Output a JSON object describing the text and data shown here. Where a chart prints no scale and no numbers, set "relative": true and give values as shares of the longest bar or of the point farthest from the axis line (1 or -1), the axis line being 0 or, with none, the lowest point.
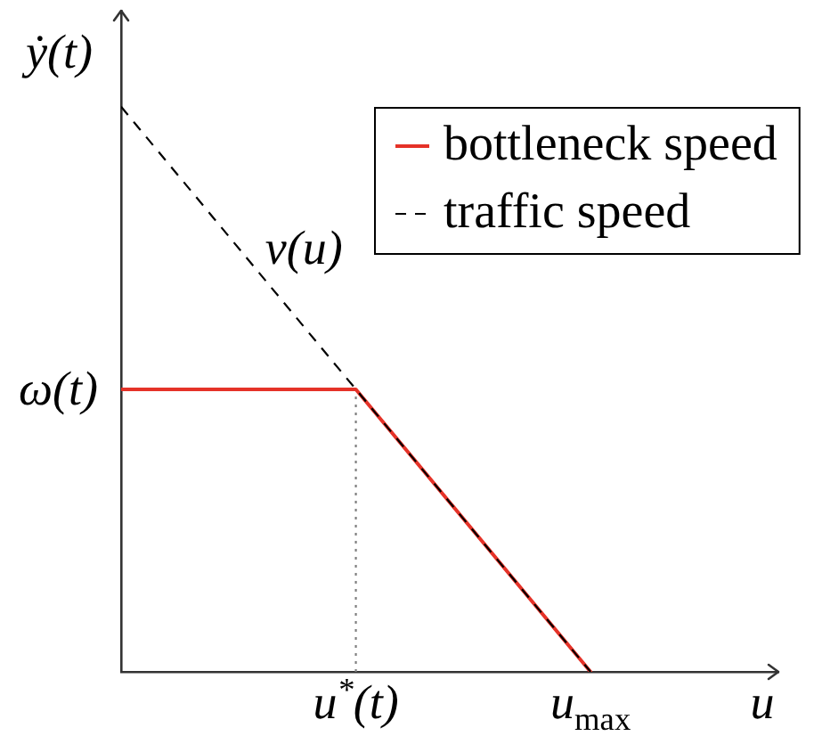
{
  "chart_data": {
    "type": "line",
    "xlabel": "u",
    "ylabel": "ẏ(t)",
    "relative": true,
    "categories": [
      null,
      "u$^{*}$(t)",
      "u$_{max}$"
    ],
    "series": [
      {
        "color": "#808080",
        "x": [
          "u$^{*}$(t)",
          "u$^{*}$(t)"
        ],
        "values": [
          0,
          0.5
        ],
        "line_style": "dotted"
      },
      {
        "name": "bottleneck speed",
        "color": "#e53228",
        "values": [
          0.5,
          0.5,
          0
        ],
        "line_style": "solid"
      },
      {
        "name": "traffic speed",
        "color": "#000000",
        "values": [
          1,
          0.5,
          0
        ],
        "line_style": "dashed"
      }
    ],
    "annotations": [
      "ω(t)",
      "v(u)"
    ],
    "legend": "top right"
  }
}
